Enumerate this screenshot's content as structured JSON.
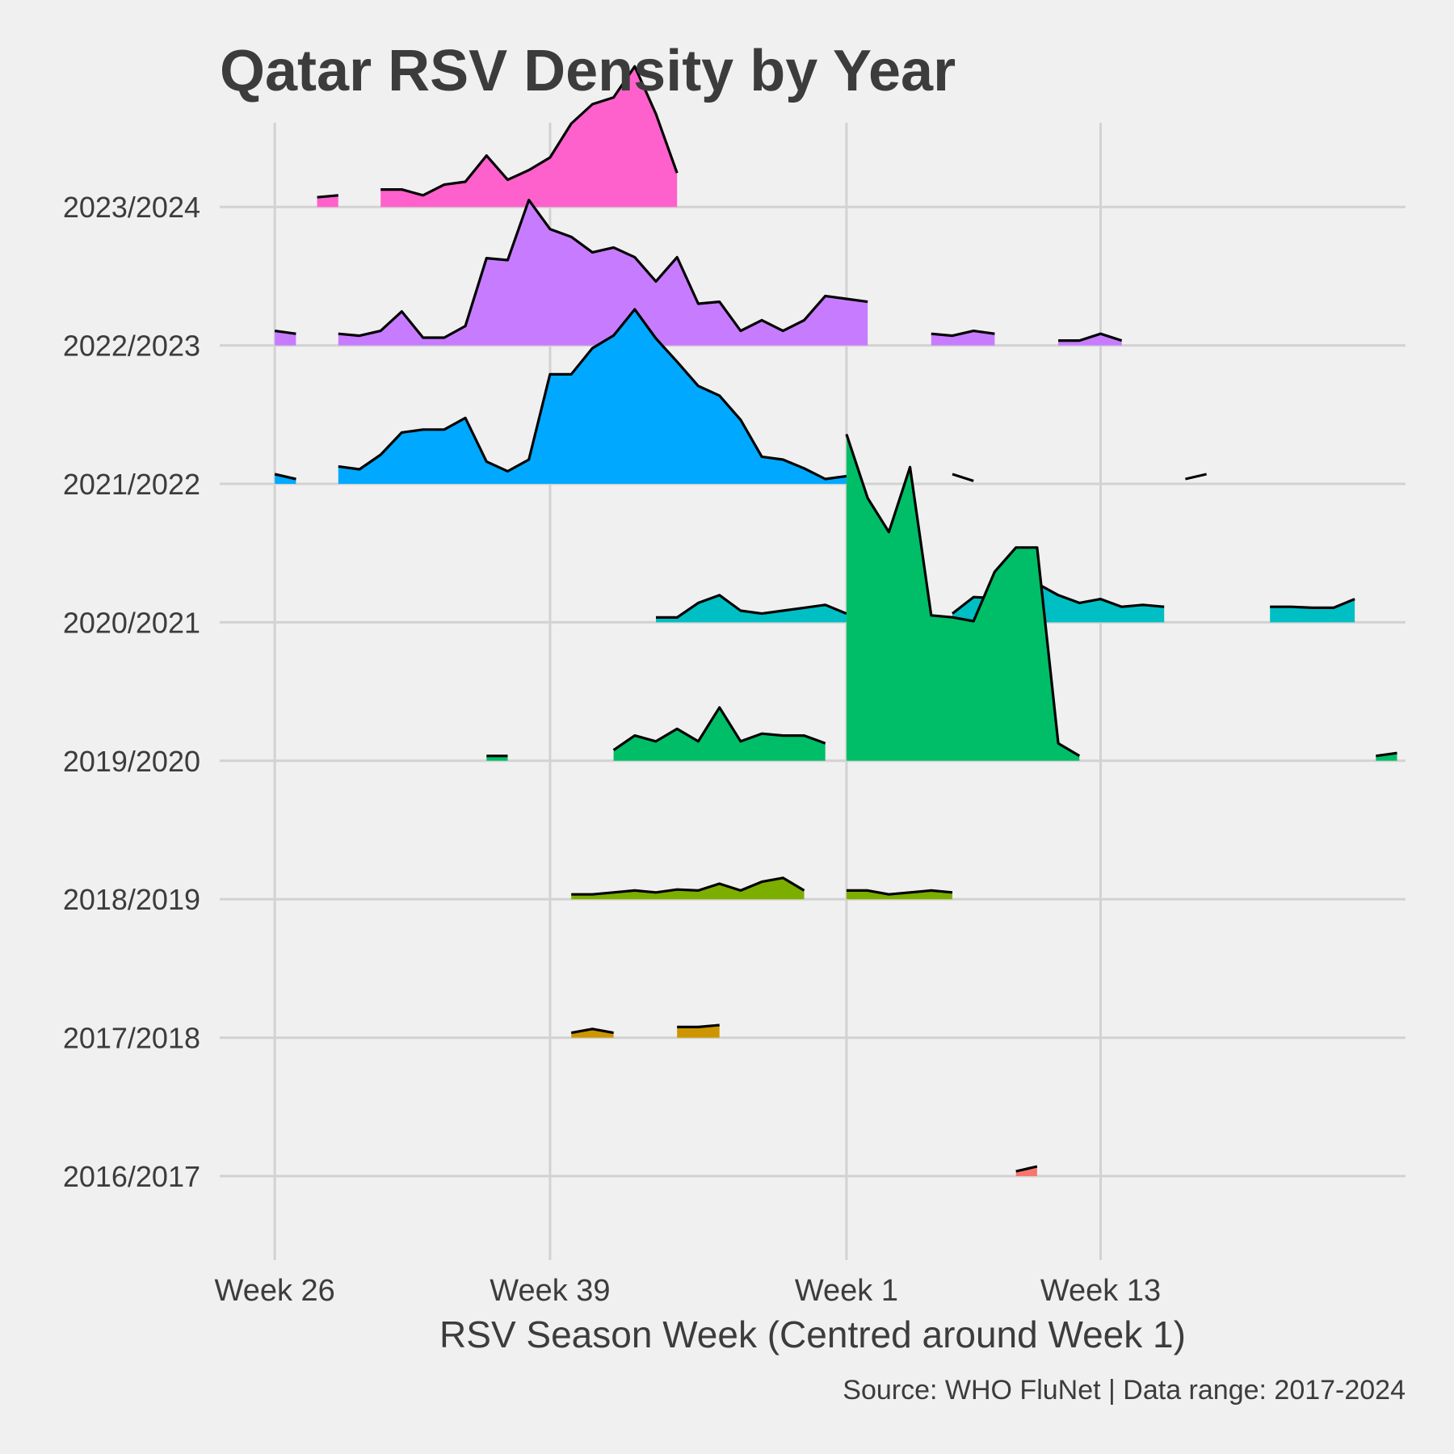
{
  "chart_data": {
    "type": "area",
    "title": "Qatar RSV Density by Year",
    "xlabel": "RSV Season Week (Centred around Week 1)",
    "ylabel": "",
    "caption": "Source: WHO FluNet | Data range: 2017-2024",
    "x_ticks": [
      {
        "label": "Week 26",
        "index": 0
      },
      {
        "label": "Week 39",
        "index": 13
      },
      {
        "label": "Week 1",
        "index": 27
      },
      {
        "label": "Week 13",
        "index": 39
      }
    ],
    "xlim": [
      -2.6,
      53.4
    ],
    "grid": true,
    "legend": "none",
    "height_scale": 0.7,
    "series": [
      {
        "name": "2016/2017",
        "color": "#F8766D",
        "segments": [
          [
            [
              35,
              0.05
            ],
            [
              36,
              0.1
            ]
          ]
        ]
      },
      {
        "name": "2017/2018",
        "color": "#CD9600",
        "segments": [
          [
            [
              14,
              0.05
            ],
            [
              15,
              0.09
            ],
            [
              16,
              0.05
            ]
          ],
          [
            [
              19,
              0.11
            ],
            [
              20,
              0.11
            ],
            [
              21,
              0.13
            ]
          ]
        ]
      },
      {
        "name": "2018/2019",
        "color": "#7CAE00",
        "segments": [
          [
            [
              14,
              0.05
            ],
            [
              15,
              0.05
            ],
            [
              16,
              0.07
            ],
            [
              17,
              0.09
            ],
            [
              18,
              0.07
            ],
            [
              19,
              0.1
            ],
            [
              20,
              0.09
            ],
            [
              21,
              0.16
            ],
            [
              22,
              0.09
            ],
            [
              23,
              0.18
            ],
            [
              24,
              0.22
            ],
            [
              25,
              0.09
            ]
          ],
          [
            [
              27,
              0.09
            ],
            [
              28,
              0.09
            ],
            [
              29,
              0.05
            ],
            [
              30,
              0.07
            ],
            [
              31,
              0.09
            ],
            [
              32,
              0.07
            ]
          ]
        ]
      },
      {
        "name": "2019/2020",
        "color": "#00BE67",
        "segments": [
          [
            [
              10,
              0.05
            ],
            [
              11,
              0.05
            ]
          ],
          [
            [
              16,
              0.11
            ],
            [
              17,
              0.26
            ],
            [
              18,
              0.2
            ],
            [
              19,
              0.33
            ],
            [
              20,
              0.2
            ],
            [
              21,
              0.55
            ],
            [
              22,
              0.2
            ],
            [
              23,
              0.28
            ],
            [
              24,
              0.26
            ],
            [
              25,
              0.26
            ],
            [
              26,
              0.18
            ]
          ],
          [
            [
              27,
              3.37
            ],
            [
              28,
              2.71
            ],
            [
              29,
              2.36
            ],
            [
              30,
              3.03
            ],
            [
              31,
              1.5
            ],
            [
              32,
              1.48
            ],
            [
              33,
              1.44
            ],
            [
              34,
              1.95
            ],
            [
              35,
              2.2
            ],
            [
              36,
              2.2
            ],
            [
              37,
              0.18
            ],
            [
              38,
              0.05
            ]
          ],
          [
            [
              52,
              0.05
            ],
            [
              53,
              0.08
            ]
          ]
        ]
      },
      {
        "name": "2020/2021",
        "color": "#00BFC4",
        "segments": [
          [
            [
              18,
              0.05
            ],
            [
              19,
              0.05
            ],
            [
              20,
              0.2
            ],
            [
              21,
              0.28
            ],
            [
              22,
              0.12
            ],
            [
              23,
              0.09
            ],
            [
              24,
              0.12
            ],
            [
              25,
              0.15
            ],
            [
              26,
              0.18
            ],
            [
              27,
              0.09
            ]
          ],
          [
            [
              32,
              0.09
            ],
            [
              33,
              0.26
            ],
            [
              34,
              0.25
            ],
            [
              35,
              0.25
            ],
            [
              36,
              0.4
            ],
            [
              37,
              0.28
            ],
            [
              38,
              0.2
            ],
            [
              39,
              0.24
            ],
            [
              40,
              0.16
            ],
            [
              41,
              0.18
            ],
            [
              42,
              0.16
            ]
          ],
          [
            [
              47,
              0.16
            ],
            [
              48,
              0.16
            ],
            [
              49,
              0.15
            ],
            [
              50,
              0.15
            ],
            [
              51,
              0.24
            ]
          ]
        ]
      },
      {
        "name": "2021/2022",
        "color": "#00A9FF",
        "segments": [
          [
            [
              0,
              0.1
            ],
            [
              1,
              0.05
            ]
          ],
          [
            [
              3,
              0.18
            ],
            [
              4,
              0.15
            ],
            [
              5,
              0.3
            ],
            [
              6,
              0.53
            ],
            [
              7,
              0.56
            ],
            [
              8,
              0.56
            ],
            [
              9,
              0.68
            ],
            [
              10,
              0.23
            ],
            [
              11,
              0.13
            ],
            [
              12,
              0.25
            ],
            [
              13,
              1.13
            ],
            [
              14,
              1.13
            ],
            [
              15,
              1.4
            ],
            [
              16,
              1.53
            ],
            [
              17,
              1.8
            ],
            [
              18,
              1.5
            ],
            [
              19,
              1.26
            ],
            [
              20,
              1.01
            ],
            [
              21,
              0.91
            ],
            [
              22,
              0.66
            ],
            [
              23,
              0.28
            ],
            [
              24,
              0.25
            ],
            [
              25,
              0.16
            ],
            [
              26,
              0.05
            ],
            [
              27,
              0.08
            ]
          ]
        ],
        "tails": [
          [
            [
              0,
              0.1
            ],
            [
              1,
              0.05
            ]
          ],
          [
            [
              32,
              0.1
            ],
            [
              33,
              0.03
            ]
          ],
          [
            [
              43,
              0.05
            ],
            [
              44,
              0.1
            ]
          ]
        ]
      },
      {
        "name": "2022/2023",
        "color": "#C77CFF",
        "segments": [
          [
            [
              0,
              0.15
            ],
            [
              1,
              0.12
            ]
          ],
          [
            [
              3,
              0.12
            ],
            [
              4,
              0.1
            ],
            [
              5,
              0.15
            ],
            [
              6,
              0.35
            ],
            [
              7,
              0.08
            ],
            [
              8,
              0.08
            ],
            [
              9,
              0.2
            ],
            [
              10,
              0.9
            ],
            [
              11,
              0.88
            ],
            [
              12,
              1.5
            ],
            [
              13,
              1.2
            ],
            [
              14,
              1.12
            ],
            [
              15,
              0.96
            ],
            [
              16,
              1.01
            ],
            [
              17,
              0.91
            ],
            [
              18,
              0.66
            ],
            [
              19,
              0.91
            ],
            [
              20,
              0.43
            ],
            [
              21,
              0.45
            ],
            [
              22,
              0.15
            ],
            [
              23,
              0.26
            ],
            [
              24,
              0.15
            ],
            [
              25,
              0.26
            ],
            [
              26,
              0.51
            ],
            [
              27,
              0.48
            ],
            [
              28,
              0.45
            ]
          ],
          [
            [
              31,
              0.12
            ],
            [
              32,
              0.1
            ],
            [
              33,
              0.15
            ],
            [
              34,
              0.12
            ]
          ],
          [
            [
              37,
              0.05
            ],
            [
              38,
              0.05
            ],
            [
              39,
              0.12
            ],
            [
              40,
              0.05
            ]
          ]
        ]
      },
      {
        "name": "2023/2024",
        "color": "#FF61CC",
        "segments": [
          [
            [
              2,
              0.1
            ],
            [
              3,
              0.12
            ]
          ],
          [
            [
              5,
              0.18
            ],
            [
              6,
              0.18
            ],
            [
              7,
              0.12
            ],
            [
              8,
              0.23
            ],
            [
              9,
              0.26
            ],
            [
              10,
              0.53
            ],
            [
              11,
              0.28
            ],
            [
              12,
              0.38
            ],
            [
              13,
              0.51
            ],
            [
              14,
              0.86
            ],
            [
              15,
              1.06
            ],
            [
              16,
              1.13
            ],
            [
              17,
              1.45
            ],
            [
              18,
              0.96
            ],
            [
              19,
              0.35
            ]
          ]
        ]
      }
    ]
  }
}
